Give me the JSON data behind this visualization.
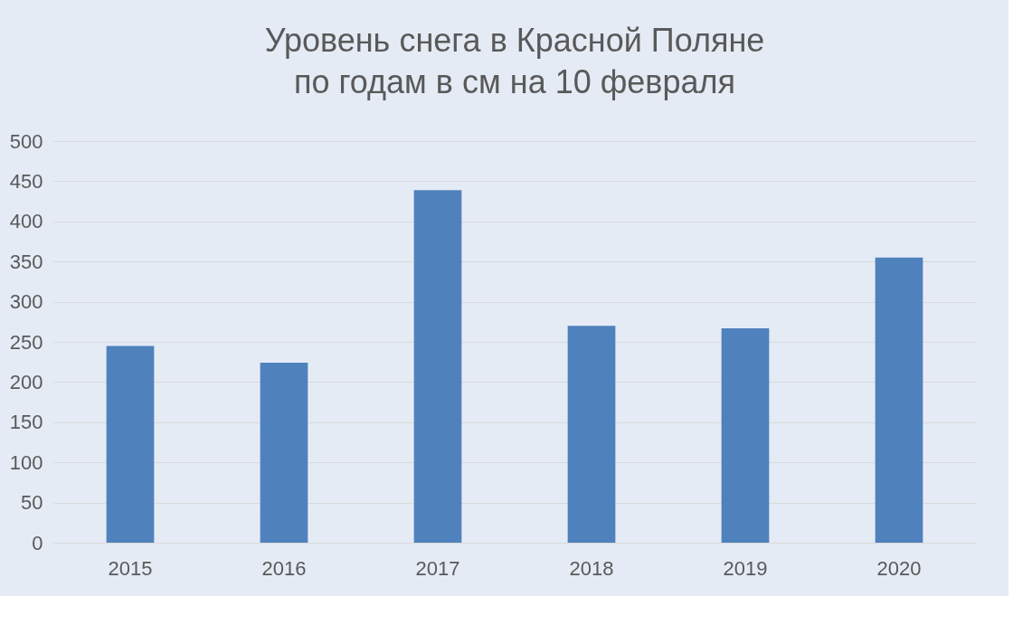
{
  "chart_data": {
    "type": "bar",
    "title": [
      "Уровень снега в Красной Поляне",
      "по годам в см на 10 февраля"
    ],
    "categories": [
      "2015",
      "2016",
      "2017",
      "2018",
      "2019",
      "2020"
    ],
    "values": [
      245,
      224,
      439,
      270,
      267,
      355
    ],
    "color": "#4f81bd",
    "ylim": [
      0,
      500
    ],
    "yticks": [
      0,
      50,
      100,
      150,
      200,
      250,
      300,
      350,
      400,
      450,
      500
    ],
    "grid": "y"
  }
}
